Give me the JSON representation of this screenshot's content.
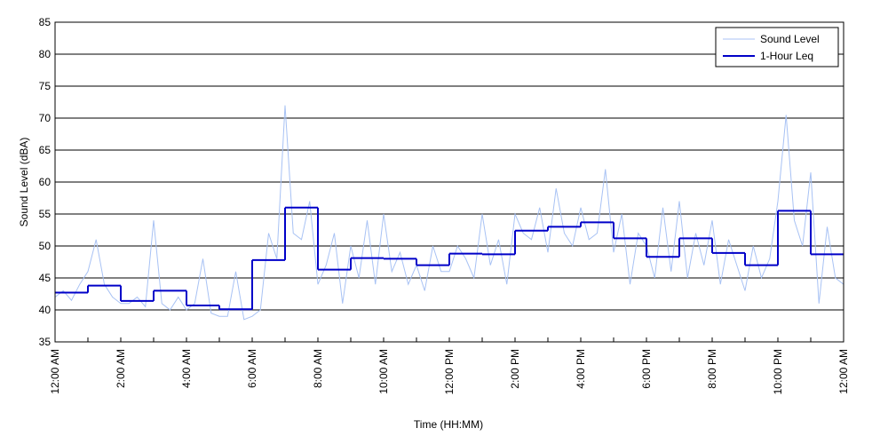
{
  "chart_data": {
    "type": "line",
    "xlabel": "Time (HH:MM)",
    "ylabel": "Sound Level (dBA)",
    "xlim": [
      0,
      24
    ],
    "ylim": [
      35,
      85
    ],
    "yticks": [
      35,
      40,
      45,
      50,
      55,
      60,
      65,
      70,
      75,
      80,
      85
    ],
    "xticks": [
      {
        "value": 0,
        "label": "12:00 AM"
      },
      {
        "value": 2,
        "label": "2:00 AM"
      },
      {
        "value": 4,
        "label": "4:00 AM"
      },
      {
        "value": 6,
        "label": "6:00 AM"
      },
      {
        "value": 8,
        "label": "8:00 AM"
      },
      {
        "value": 10,
        "label": "10:00 AM"
      },
      {
        "value": 12,
        "label": "12:00 PM"
      },
      {
        "value": 14,
        "label": "2:00 PM"
      },
      {
        "value": 16,
        "label": "4:00 PM"
      },
      {
        "value": 18,
        "label": "6:00 PM"
      },
      {
        "value": 20,
        "label": "8:00 PM"
      },
      {
        "value": 22,
        "label": "10:00 PM"
      },
      {
        "value": 24,
        "label": "12:00 AM"
      }
    ],
    "xminorticks": [
      1,
      3,
      5,
      7,
      9,
      11,
      13,
      15,
      17,
      19,
      21,
      23
    ],
    "grid": true,
    "legend": "upper right",
    "series": [
      {
        "name": "Sound Level",
        "color": "#a8c2f4",
        "style": "line",
        "x": [
          0,
          0.25,
          0.5,
          0.75,
          1,
          1.25,
          1.5,
          1.75,
          2,
          2.25,
          2.5,
          2.75,
          3,
          3.25,
          3.5,
          3.75,
          4,
          4.25,
          4.5,
          4.75,
          5,
          5.25,
          5.5,
          5.75,
          6,
          6.25,
          6.5,
          6.75,
          7,
          7.25,
          7.5,
          7.75,
          8,
          8.25,
          8.5,
          8.75,
          9,
          9.25,
          9.5,
          9.75,
          10,
          10.25,
          10.5,
          10.75,
          11,
          11.25,
          11.5,
          11.75,
          12,
          12.25,
          12.5,
          12.75,
          13,
          13.25,
          13.5,
          13.75,
          14,
          14.25,
          14.5,
          14.75,
          15,
          15.25,
          15.5,
          15.75,
          16,
          16.25,
          16.5,
          16.75,
          17,
          17.25,
          17.5,
          17.75,
          18,
          18.25,
          18.5,
          18.75,
          19,
          19.25,
          19.5,
          19.75,
          20,
          20.25,
          20.5,
          20.75,
          21,
          21.25,
          21.5,
          21.75,
          22,
          22.25,
          22.5,
          22.75,
          23,
          23.25,
          23.5,
          23.75,
          24
        ],
        "values": [
          42,
          43,
          41.5,
          44,
          46,
          51,
          44,
          42,
          41,
          41,
          42,
          40.5,
          54,
          41,
          40,
          42,
          40,
          41,
          48,
          39.5,
          39,
          39,
          46,
          38.5,
          39,
          40,
          52,
          48,
          72,
          52,
          51,
          57,
          44,
          47,
          52,
          41,
          50,
          45,
          54,
          44,
          55,
          46,
          49,
          44,
          47,
          43,
          50,
          46,
          46,
          50,
          48,
          45,
          55,
          47,
          51,
          44,
          55,
          52,
          51,
          56,
          49,
          59,
          52,
          50,
          56,
          51,
          52,
          62,
          49,
          55,
          44,
          52,
          50,
          45,
          56,
          46,
          57,
          45,
          52,
          47,
          54,
          44,
          51,
          47,
          43,
          50,
          45,
          48,
          57,
          70.5,
          54,
          50,
          61.5,
          41,
          53,
          45,
          44
        ]
      },
      {
        "name": "1-Hour Leq",
        "color": "#0000c8",
        "style": "step",
        "x": [
          0,
          1,
          2,
          3,
          4,
          5,
          6,
          7,
          8,
          9,
          10,
          11,
          12,
          13,
          14,
          15,
          16,
          17,
          18,
          19,
          20,
          21,
          22,
          23
        ],
        "values": [
          42.7,
          43.8,
          41.4,
          43.0,
          40.7,
          40.1,
          47.8,
          56.0,
          46.3,
          48.1,
          48.0,
          47.0,
          48.8,
          48.7,
          52.4,
          53.0,
          53.7,
          51.2,
          48.3,
          51.2,
          48.9,
          47.0,
          55.5,
          48.7
        ]
      }
    ]
  }
}
